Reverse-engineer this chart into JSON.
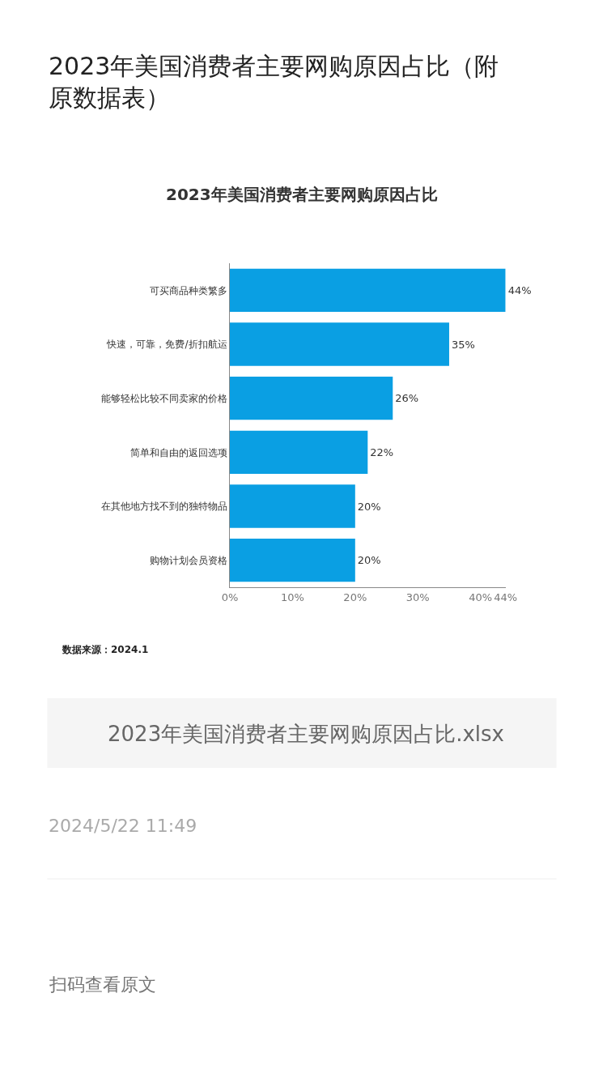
{
  "chart_data": {
    "type": "bar",
    "orientation": "horizontal",
    "title": "2023年美国消费者主要网购原因占比",
    "categories": [
      "可买商品种类繁多",
      "快速，可靠，免费/折扣航运",
      "能够轻松比较不同卖家的价格",
      "简单和自由的返回选项",
      "在其他地方找不到的独特物品",
      "购物计划会员资格"
    ],
    "values": [
      44,
      35,
      26,
      22,
      20,
      20
    ],
    "value_labels": [
      "44%",
      "35%",
      "26%",
      "22%",
      "20%",
      "20%"
    ],
    "color": "#0a9fe3",
    "xlim": [
      0,
      44
    ],
    "xticks": [
      {
        "value": 0,
        "label": "0%"
      },
      {
        "value": 10,
        "label": "10%"
      },
      {
        "value": 20,
        "label": "20%"
      },
      {
        "value": 30,
        "label": "30%"
      },
      {
        "value": 40,
        "label": "40%"
      },
      {
        "value": 44,
        "label": "44%"
      }
    ],
    "legend": false,
    "annotations": [
      "2023年美国消费者主要网购原因占比（附原数据表）",
      "数据来源：2024.1",
      "2023年美国消费者主要网购原因占比.xlsx",
      "2024/5/22 11:49",
      "扫码查看原文"
    ]
  }
}
